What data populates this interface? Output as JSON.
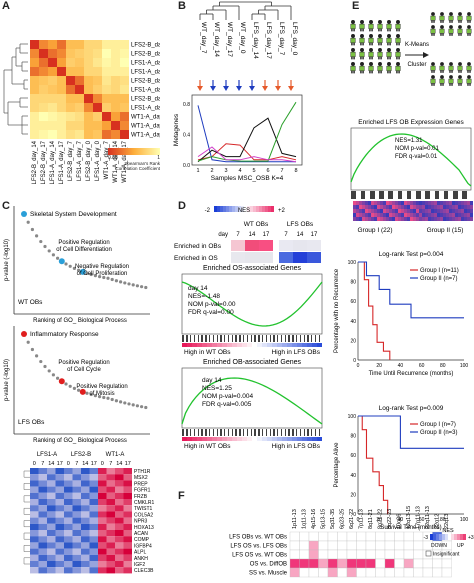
{
  "panel_labels": {
    "A": "A",
    "B": "B",
    "C": "C",
    "D": "D",
    "E": "E",
    "F": "F"
  },
  "panelA": {
    "samples": [
      "LFS2-B_day_14",
      "LFS2-B_day_17",
      "LFS1-A_day_14",
      "LFS1-A_day_17",
      "LFS2-B_day_7",
      "LFS1-A_day_7",
      "LFS2-B_day_0",
      "LFS1-A_day_0",
      "WT1-A_day_7",
      "WT1-A_day_14",
      "WT1-A_day_17"
    ],
    "colorbar": {
      "min": "0.88",
      "mid": "1",
      "title": "Spearman's Rank Correlation Coefficient"
    },
    "colors": {
      "low": "#d7301f",
      "mid": "#fdae3b",
      "high": "#ffffb2"
    }
  },
  "panelB": {
    "dendro_labels": [
      "WT_day_7",
      "WT_day_14",
      "WT_day_17",
      "WT_day_0",
      "LFS_day_14",
      "LFS_day_17",
      "LFS_day_7",
      "LFS_day_0"
    ],
    "ylabel": "Metagenes",
    "xlabel": "Samples MSC_OSB K=4",
    "xticks": [
      "1",
      "2",
      "3",
      "4",
      "5",
      "6",
      "7",
      "8"
    ],
    "yticks": [
      "0.0",
      "0.4",
      "0.8"
    ]
  },
  "panelC": {
    "ylabel": "p-value (-log10)",
    "xlabel": "Ranking of GO_ Biological Process",
    "top_labels": [
      "Skeletal System Development",
      "Positive Regulation of Cell Differentiation",
      "Negative Regulation of Cell Proliferation"
    ],
    "top_group": "WT OBs",
    "bottom_labels": [
      "Inflammatory Response",
      "Positive Regulation of Cell Cycle",
      "Positive Regulation of Mitosis"
    ],
    "bottom_group": "LFS OBs",
    "heat_cols": [
      "LFS1-A",
      "LFS2-B",
      "WT1-A"
    ],
    "heat_days": [
      "0",
      "7",
      "14",
      "17",
      "0",
      "7",
      "14",
      "17",
      "0",
      "7",
      "14",
      "17"
    ],
    "heat_genes": [
      "PTH1R",
      "MSX2",
      "PREP",
      "FGFR1",
      "FRZB",
      "CMKLR1",
      "TWIST1",
      "COL5A2",
      "NPR3",
      "HOXA13",
      "ACAN",
      "COMP",
      "IGFBP4",
      "ALPL",
      "ANKH",
      "IGF2",
      "CLEC3B"
    ]
  },
  "panelD": {
    "nes_min": "-2",
    "nes_label": "NES",
    "nes_max": "+2",
    "group_wt": "WT OBs",
    "group_lfs": "LFS OBs",
    "day_label": "day",
    "days": [
      "7",
      "14",
      "17",
      "7",
      "14",
      "17"
    ],
    "rows": [
      "Enriched in OBs",
      "Enriched in OS"
    ],
    "gsea1": {
      "title": "Enriched OS-associated Genes",
      "day": "day 14",
      "nes": "NES=-1.48",
      "nom": "NOM p-val=0.00",
      "fdr": "FDR q-val=0.00",
      "left": "High in WT OBs",
      "right": "High in LFS OBs"
    },
    "gsea2": {
      "title": "Enriched OB-associated Genes",
      "day": "day 14",
      "nes": "NES=1.25",
      "nom": "NOM p-val=0.004",
      "fdr": "FDR q-val=0.005",
      "left": "High in WT OBs",
      "right": "High in LFS OBs"
    }
  },
  "panelE": {
    "cluster_label": "K-Means Cluster",
    "gsea_title": "Enriched LFS OB Expression Genes",
    "nes": "NES=1.31",
    "nom": "NOM p-val=0.01",
    "fdr": "FDR q-val=0.01",
    "group1": "Group I (22)",
    "group2": "Group II (15)",
    "km1": {
      "test": "Log-rank Test p=0.004",
      "ylabel": "Percentage with no Recurrence",
      "xlabel": "Time Until Recurrence (months)",
      "legend": [
        "Group I (n=11)",
        "Group II (n=7)"
      ],
      "yticks": [
        "0",
        "20",
        "40",
        "60",
        "80",
        "100"
      ],
      "xticks": [
        "0",
        "20",
        "40",
        "60",
        "80",
        "100"
      ]
    },
    "km2": {
      "test": "Log-rank Test p=0.009",
      "ylabel": "Percentage Alive",
      "xlabel": "Survival Time (months)",
      "legend": [
        "Group I (n=7)",
        "Group II (n=3)"
      ],
      "yticks": [
        "0",
        "20",
        "40",
        "60",
        "80",
        "100"
      ],
      "xticks": [
        "0",
        "20",
        "40",
        "60",
        "80",
        "100"
      ]
    },
    "colors": {
      "group1": "#d62728",
      "group2": "#1f3cbf"
    }
  },
  "panelF": {
    "columns": [
      "1p11-13",
      "1q11-13",
      "4p15-16",
      "5p13-15",
      "5q31-35",
      "6p23-25",
      "6q21-22",
      "7p11-13",
      "8q11-21",
      "8q21-22",
      "8q22-23",
      "10q26",
      "12q13-15",
      "17p11-13",
      "22q11-13",
      "22q12",
      "22q13"
    ],
    "rows": [
      "LFS OBs vs. WT OBs",
      "LFS OS vs. LFS OBs",
      "LFS OS vs. WT OBs",
      "OS vs. DiffOB",
      "SS vs. Muscle"
    ],
    "legend": {
      "min": "-3",
      "label": "NES",
      "max": "+3",
      "down": "DOWN",
      "up": "UP",
      "insig": "Insignificant"
    }
  }
}
